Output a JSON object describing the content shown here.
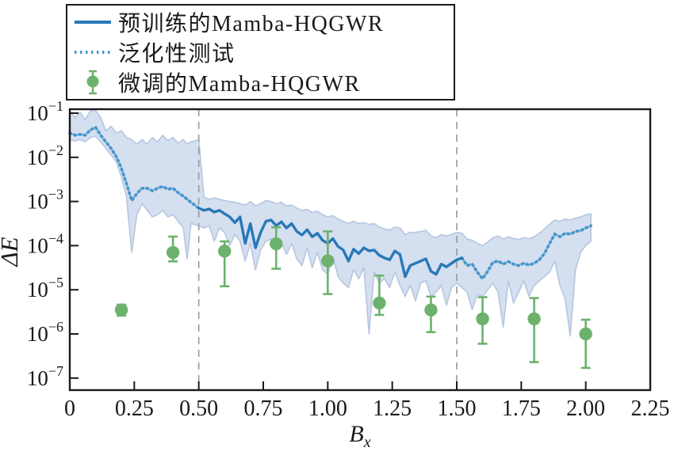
{
  "legend": {
    "items": [
      {
        "id": "pretrained",
        "label": "预训练的Mamba-HQGWR",
        "marker": "solid-line"
      },
      {
        "id": "generalization",
        "label": "泛化性测试",
        "marker": "dotted-line"
      },
      {
        "id": "finetuned",
        "label": "微调的Mamba-HQGWR",
        "marker": "errorbar-point"
      }
    ]
  },
  "axes": {
    "ylabel": "ΔE",
    "xlabel_base": "B",
    "xlabel_sub": "x",
    "x_tick_values": [
      0,
      0.25,
      0.5,
      0.75,
      1.0,
      1.25,
      1.5,
      1.75,
      2.0,
      2.25
    ],
    "x_tick_labels": [
      "0",
      "0.25",
      "0.50",
      "0.75",
      "1.00",
      "1.25",
      "1.50",
      "1.75",
      "2.00",
      "2.25"
    ],
    "y_tick_exponents": [
      -1,
      -2,
      -3,
      -4,
      -5,
      -6,
      -7
    ]
  },
  "colors": {
    "pretrained": "#2878b8",
    "generalization": "#4896cc",
    "finetuned": "#6cb26c",
    "band_fill": "#cdd9ec",
    "band_edge": "#b7c6df",
    "vline": "#999999",
    "axis": "#1a1a1a"
  },
  "chart_data": {
    "type": "line",
    "title": "",
    "xlabel": "B_x",
    "ylabel": "ΔE (log scale)",
    "x_axis_range": [
      0,
      2.25
    ],
    "y_axis_log10_range": [
      -7,
      -1
    ],
    "grid": false,
    "legend_position": "top-left",
    "vlines_x": [
      0.5,
      1.5
    ],
    "solid_x_range": [
      0.5,
      1.52
    ],
    "line": {
      "note": "center line: dotted (generalization test) for x<0.5 and x>1.52, solid (pretrained) inside",
      "x": [
        0.0,
        0.02,
        0.04,
        0.06,
        0.08,
        0.1,
        0.12,
        0.14,
        0.16,
        0.18,
        0.2,
        0.22,
        0.24,
        0.26,
        0.28,
        0.3,
        0.32,
        0.34,
        0.36,
        0.38,
        0.4,
        0.42,
        0.44,
        0.455,
        0.47,
        0.5,
        0.52,
        0.54,
        0.56,
        0.58,
        0.6,
        0.62,
        0.64,
        0.66,
        0.68,
        0.7,
        0.72,
        0.74,
        0.76,
        0.78,
        0.8,
        0.82,
        0.84,
        0.86,
        0.88,
        0.9,
        0.92,
        0.94,
        0.96,
        0.98,
        1.0,
        1.02,
        1.04,
        1.06,
        1.08,
        1.1,
        1.12,
        1.14,
        1.16,
        1.18,
        1.2,
        1.22,
        1.24,
        1.26,
        1.28,
        1.3,
        1.32,
        1.34,
        1.36,
        1.38,
        1.4,
        1.42,
        1.44,
        1.46,
        1.48,
        1.5,
        1.52,
        1.54,
        1.56,
        1.58,
        1.6,
        1.62,
        1.64,
        1.66,
        1.68,
        1.7,
        1.72,
        1.74,
        1.76,
        1.78,
        1.8,
        1.82,
        1.84,
        1.86,
        1.88,
        1.9,
        1.92,
        1.94,
        1.96,
        1.98,
        2.0,
        2.02
      ],
      "center_log10": [
        -1.45,
        -1.5,
        -1.48,
        -1.5,
        -1.38,
        -1.32,
        -1.5,
        -1.65,
        -1.8,
        -1.98,
        -2.25,
        -2.6,
        -2.98,
        -2.82,
        -2.7,
        -2.7,
        -2.76,
        -2.7,
        -2.66,
        -2.72,
        -2.7,
        -2.8,
        -2.88,
        -2.95,
        -3.02,
        -3.15,
        -3.2,
        -3.17,
        -3.24,
        -3.2,
        -3.28,
        -3.35,
        -3.48,
        -3.35,
        -3.95,
        -3.5,
        -4.05,
        -3.7,
        -3.45,
        -3.42,
        -3.55,
        -3.46,
        -3.6,
        -3.5,
        -3.68,
        -3.76,
        -3.64,
        -3.8,
        -3.72,
        -3.88,
        -3.95,
        -3.84,
        -4.02,
        -4.1,
        -4.35,
        -4.08,
        -4.18,
        -4.05,
        -4.12,
        -4.1,
        -4.22,
        -4.28,
        -4.32,
        -4.12,
        -4.2,
        -4.7,
        -4.45,
        -4.4,
        -4.35,
        -4.3,
        -4.58,
        -4.65,
        -4.42,
        -4.48,
        -4.4,
        -4.32,
        -4.28,
        -4.45,
        -4.42,
        -4.6,
        -4.75,
        -4.58,
        -4.38,
        -4.35,
        -4.42,
        -4.36,
        -4.42,
        -4.45,
        -4.4,
        -4.44,
        -4.4,
        -4.32,
        -4.18,
        -3.95,
        -3.74,
        -3.8,
        -3.72,
        -3.74,
        -3.68,
        -3.66,
        -3.6,
        -3.55
      ]
    },
    "band": {
      "upper_log10": [
        -0.95,
        -1.1,
        -0.98,
        -1.15,
        -0.95,
        -0.92,
        -1.1,
        -1.4,
        -1.3,
        -1.45,
        -1.4,
        -1.55,
        -1.6,
        -1.7,
        -1.6,
        -1.7,
        -1.55,
        -1.65,
        -1.5,
        -1.62,
        -1.55,
        -1.68,
        -1.6,
        -1.7,
        -1.65,
        -1.6,
        -2.9,
        -2.95,
        -2.92,
        -2.95,
        -2.98,
        -3.0,
        -3.02,
        -3.05,
        -3.08,
        -3.0,
        -3.1,
        -3.05,
        -2.98,
        -3.0,
        -3.05,
        -3.02,
        -3.1,
        -3.08,
        -3.15,
        -3.2,
        -3.18,
        -3.25,
        -3.22,
        -3.3,
        -3.35,
        -3.32,
        -3.4,
        -3.45,
        -3.5,
        -3.45,
        -3.5,
        -3.48,
        -3.52,
        -3.5,
        -3.58,
        -3.62,
        -3.65,
        -3.58,
        -3.6,
        -3.75,
        -3.7,
        -3.7,
        -3.68,
        -3.65,
        -3.78,
        -3.82,
        -3.75,
        -3.78,
        -3.75,
        -3.7,
        -3.72,
        -3.85,
        -3.88,
        -3.95,
        -4.0,
        -3.92,
        -3.82,
        -3.78,
        -3.85,
        -3.8,
        -3.84,
        -3.86,
        -3.82,
        -3.84,
        -3.8,
        -3.72,
        -3.62,
        -3.52,
        -3.42,
        -3.45,
        -3.4,
        -3.42,
        -3.38,
        -3.35,
        -3.3,
        -3.28
      ],
      "lower_log10": [
        -1.6,
        -1.63,
        -1.6,
        -1.65,
        -1.55,
        -1.52,
        -1.65,
        -1.8,
        -1.95,
        -2.1,
        -2.45,
        -2.9,
        -4.15,
        -3.3,
        -3.05,
        -3.2,
        -3.35,
        -3.3,
        -3.2,
        -3.35,
        -3.3,
        -3.45,
        -3.6,
        -4.3,
        -3.5,
        -3.55,
        -3.6,
        -3.55,
        -3.9,
        -3.6,
        -3.7,
        -4.0,
        -3.75,
        -3.9,
        -4.35,
        -3.95,
        -4.55,
        -4.1,
        -3.9,
        -3.85,
        -4.05,
        -3.92,
        -4.2,
        -3.95,
        -4.3,
        -4.45,
        -4.05,
        -4.5,
        -4.15,
        -4.55,
        -4.65,
        -4.25,
        -4.7,
        -4.85,
        -4.95,
        -4.55,
        -4.75,
        -4.5,
        -6.0,
        -4.6,
        -4.85,
        -4.75,
        -4.95,
        -4.6,
        -4.9,
        -5.15,
        -4.9,
        -5.25,
        -4.85,
        -4.8,
        -5.15,
        -5.05,
        -4.9,
        -5.35,
        -4.95,
        -4.85,
        -4.95,
        -5.05,
        -5.45,
        -5.1,
        -5.15,
        -5.0,
        -4.85,
        -5.05,
        -5.85,
        -4.8,
        -5.3,
        -5.05,
        -4.8,
        -5.15,
        -4.9,
        -4.8,
        -4.7,
        -4.6,
        -4.35,
        -4.9,
        -5.2,
        -6.05,
        -4.55,
        -4.15,
        -4.0,
        -3.9
      ]
    },
    "points": {
      "name": "微调的Mamba-HQGWR",
      "x": [
        0.2,
        0.4,
        0.6,
        0.8,
        1.0,
        1.2,
        1.4,
        1.6,
        1.8,
        2.0
      ],
      "y": [
        3.5e-06,
        7e-05,
        7.5e-05,
        0.00011,
        4.5e-05,
        5e-06,
        3.5e-06,
        2.2e-06,
        2.2e-06,
        1e-06
      ],
      "err_lo": [
        2.6e-06,
        4.4e-05,
        1.2e-05,
        3e-05,
        8e-06,
        2.7e-06,
        1.1e-06,
        6e-07,
        2.3e-07,
        1.7e-07
      ],
      "err_hi": [
        4.6e-06,
        0.00016,
        0.000125,
        0.00026,
        0.00021,
        2.1e-05,
        7e-06,
        6.8e-06,
        6.5e-06,
        2.1e-06
      ]
    }
  }
}
